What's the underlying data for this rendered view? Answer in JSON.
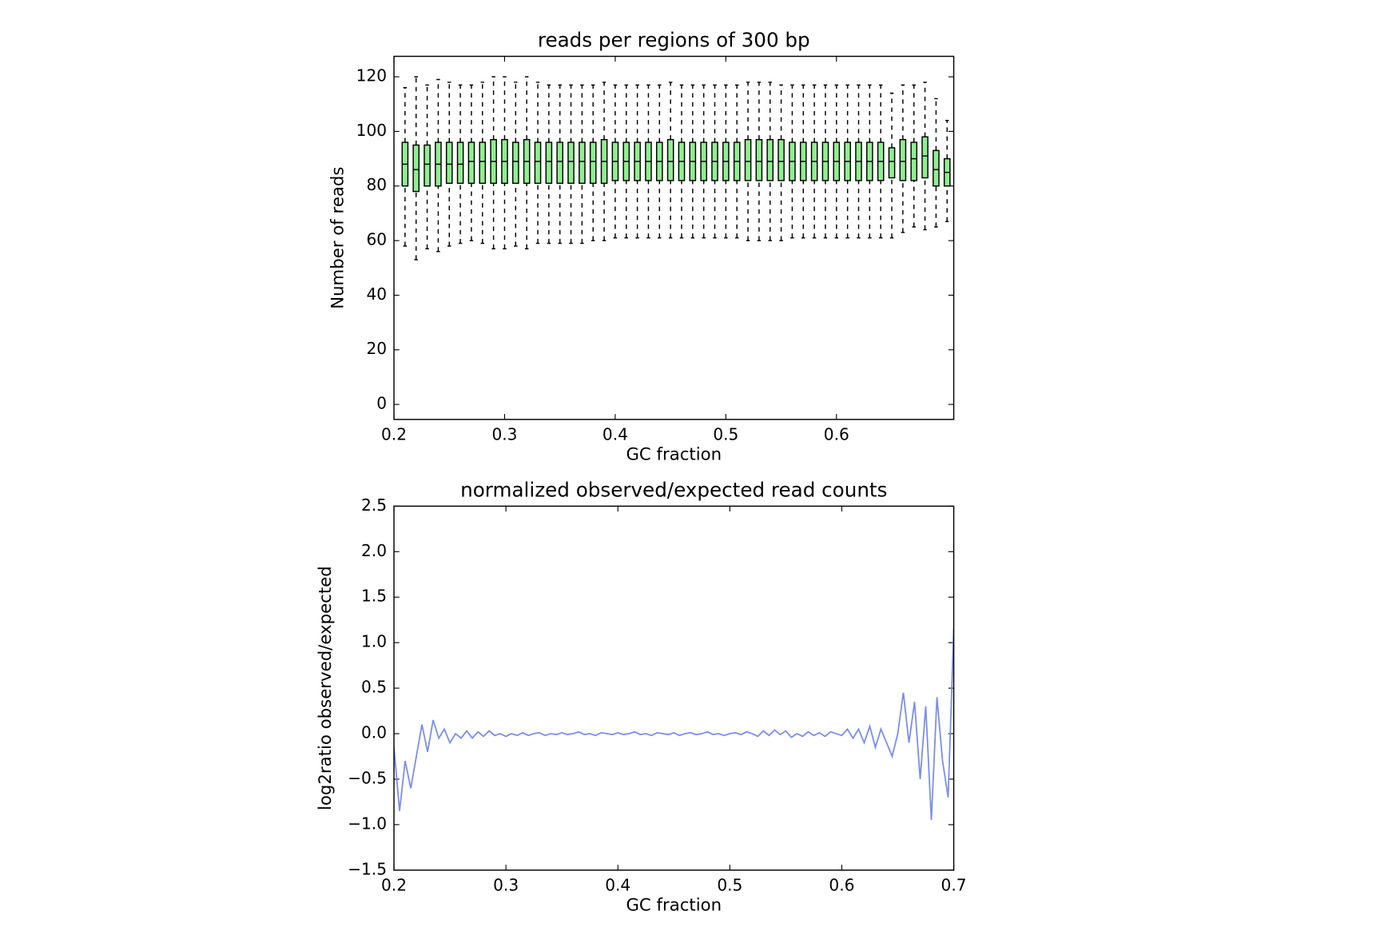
{
  "chart_data": [
    {
      "type": "box",
      "title": "reads per regions of 300 bp",
      "xlabel": "GC fraction",
      "ylabel": "Number of reads",
      "xlim": [
        0.2,
        0.706
      ],
      "xticks": [
        0.2,
        0.3,
        0.4,
        0.5,
        0.6
      ],
      "ylim": [
        -5.5,
        127.5
      ],
      "yticks": [
        0,
        20,
        40,
        60,
        80,
        100,
        120
      ],
      "color": "#90ee90",
      "positions": [
        0.21,
        0.22,
        0.23,
        0.24,
        0.25,
        0.26,
        0.27,
        0.28,
        0.29,
        0.3,
        0.31,
        0.32,
        0.33,
        0.34,
        0.35,
        0.36,
        0.37,
        0.38,
        0.39,
        0.4,
        0.41,
        0.42,
        0.43,
        0.44,
        0.45,
        0.46,
        0.47,
        0.48,
        0.49,
        0.5,
        0.51,
        0.52,
        0.53,
        0.54,
        0.55,
        0.56,
        0.57,
        0.58,
        0.59,
        0.6,
        0.61,
        0.62,
        0.63,
        0.64,
        0.65,
        0.66,
        0.67,
        0.68,
        0.69,
        0.7
      ],
      "whislo": [
        58,
        53,
        57,
        56,
        58,
        59,
        60,
        59,
        57,
        57,
        58,
        57,
        59,
        59,
        59,
        59,
        59,
        60,
        60,
        61,
        61,
        61,
        61,
        61,
        61,
        61,
        61,
        61,
        61,
        61,
        61,
        60,
        60,
        60,
        60,
        61,
        61,
        61,
        61,
        61,
        61,
        61,
        61,
        61,
        61,
        63,
        65,
        64,
        65,
        67
      ],
      "q1": [
        80,
        78,
        80,
        80,
        81,
        81,
        81,
        81,
        81,
        81,
        81,
        81,
        81,
        81,
        81,
        81,
        81,
        81,
        81,
        82,
        82,
        82,
        82,
        82,
        82,
        82,
        82,
        82,
        82,
        82,
        82,
        82,
        82,
        82,
        82,
        82,
        82,
        82,
        82,
        82,
        82,
        82,
        82,
        82,
        83,
        82,
        82,
        83,
        80,
        80
      ],
      "median": [
        88,
        86,
        88,
        88,
        88,
        88,
        89,
        89,
        89,
        89,
        89,
        89,
        89,
        89,
        89,
        89,
        89,
        89,
        89,
        89,
        89,
        89,
        89,
        89,
        89,
        89,
        89,
        89,
        89,
        89,
        89,
        89,
        89,
        89,
        89,
        89,
        89,
        89,
        89,
        89,
        89,
        89,
        89,
        89,
        89,
        89,
        90,
        91,
        86,
        85
      ],
      "q3": [
        96,
        95,
        95,
        96,
        96,
        96,
        96,
        96,
        97,
        97,
        96,
        97,
        96,
        96,
        96,
        96,
        96,
        96,
        97,
        96,
        96,
        96,
        96,
        96,
        97,
        96,
        96,
        96,
        96,
        96,
        96,
        97,
        97,
        97,
        97,
        96,
        96,
        96,
        96,
        96,
        96,
        96,
        96,
        96,
        94,
        97,
        96,
        98,
        93,
        90
      ],
      "whishi": [
        116,
        120,
        117,
        119,
        118,
        117,
        117,
        118,
        120,
        120,
        118,
        120,
        118,
        117,
        117,
        117,
        117,
        117,
        118,
        117,
        117,
        117,
        117,
        117,
        118,
        117,
        117,
        117,
        117,
        117,
        117,
        118,
        118,
        118,
        117,
        117,
        117,
        117,
        117,
        117,
        117,
        117,
        117,
        117,
        114,
        117,
        117,
        118,
        112,
        104
      ]
    },
    {
      "type": "line",
      "title": "normalized observed/expected read counts",
      "xlabel": "GC fraction",
      "ylabel": "log2ratio observed/expected",
      "xlim": [
        0.2,
        0.7
      ],
      "xticks": [
        0.2,
        0.3,
        0.4,
        0.5,
        0.6,
        0.7
      ],
      "ylim": [
        -1.5,
        2.5
      ],
      "yticks": [
        {
          "value": -1.5,
          "label": "−1.5"
        },
        {
          "value": -1.0,
          "label": "−1.0"
        },
        {
          "value": -0.5,
          "label": "−0.5"
        },
        {
          "value": 0.0,
          "label": "0.0"
        },
        0.5,
        {
          "value": 1.0,
          "label": "1.0"
        },
        1.5,
        {
          "value": 2.0,
          "label": "2.0"
        },
        2.5
      ],
      "color": "#7b8ee8",
      "x": [
        0.2,
        0.205,
        0.21,
        0.215,
        0.22,
        0.225,
        0.23,
        0.235,
        0.24,
        0.245,
        0.25,
        0.255,
        0.26,
        0.265,
        0.27,
        0.275,
        0.28,
        0.285,
        0.29,
        0.295,
        0.3,
        0.305,
        0.31,
        0.315,
        0.32,
        0.325,
        0.33,
        0.335,
        0.34,
        0.345,
        0.35,
        0.355,
        0.36,
        0.365,
        0.37,
        0.375,
        0.38,
        0.385,
        0.39,
        0.395,
        0.4,
        0.405,
        0.41,
        0.415,
        0.42,
        0.425,
        0.43,
        0.435,
        0.44,
        0.445,
        0.45,
        0.455,
        0.46,
        0.465,
        0.47,
        0.475,
        0.48,
        0.485,
        0.49,
        0.495,
        0.5,
        0.505,
        0.51,
        0.515,
        0.52,
        0.525,
        0.53,
        0.535,
        0.54,
        0.545,
        0.55,
        0.555,
        0.56,
        0.565,
        0.57,
        0.575,
        0.58,
        0.585,
        0.59,
        0.595,
        0.6,
        0.605,
        0.61,
        0.615,
        0.62,
        0.625,
        0.63,
        0.635,
        0.64,
        0.645,
        0.65,
        0.655,
        0.66,
        0.665,
        0.67,
        0.675,
        0.68,
        0.685,
        0.69,
        0.695,
        0.7
      ],
      "values": [
        -0.15,
        -0.85,
        -0.3,
        -0.6,
        -0.25,
        0.1,
        -0.2,
        0.15,
        -0.05,
        0.05,
        -0.1,
        0.0,
        -0.05,
        0.03,
        -0.05,
        0.02,
        -0.03,
        0.03,
        -0.02,
        0.0,
        -0.03,
        0.0,
        -0.02,
        0.01,
        -0.02,
        0.0,
        0.01,
        -0.02,
        0.0,
        -0.01,
        0.01,
        -0.01,
        0.0,
        0.02,
        -0.01,
        0.0,
        -0.02,
        0.01,
        0.0,
        -0.01,
        0.01,
        -0.01,
        0.0,
        0.02,
        -0.01,
        0.0,
        -0.02,
        0.01,
        0.0,
        -0.01,
        0.01,
        -0.02,
        0.0,
        0.01,
        -0.01,
        0.0,
        0.02,
        -0.01,
        0.0,
        -0.02,
        0.0,
        0.01,
        -0.01,
        0.02,
        0.0,
        -0.03,
        0.03,
        -0.02,
        0.04,
        -0.01,
        0.03,
        -0.04,
        0.0,
        -0.03,
        0.02,
        -0.02,
        0.01,
        -0.03,
        0.02,
        0.0,
        -0.02,
        0.05,
        -0.05,
        0.05,
        -0.1,
        0.08,
        -0.15,
        0.05,
        -0.1,
        -0.25,
        0.0,
        0.45,
        -0.1,
        0.35,
        -0.5,
        0.3,
        -0.95,
        0.4,
        -0.3,
        -0.7,
        1.15
      ]
    }
  ]
}
